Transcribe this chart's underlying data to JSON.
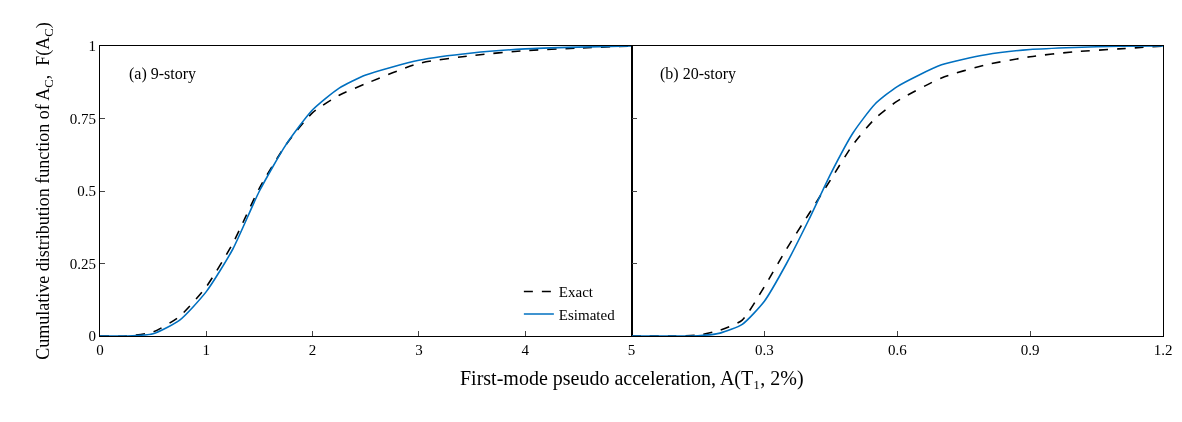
{
  "chart_data": [
    {
      "type": "line",
      "ylabel": "Cumulative distribution function of A$_{C}$,  F(A$_{C}$)",
      "xlabel": "First-mode pseudo acceleration, A(T₁, 2%)",
      "x": [
        0,
        0.25,
        0.5,
        0.75,
        1,
        1.25,
        1.5,
        1.75,
        2,
        2.25,
        2.5,
        3,
        3.5,
        4,
        4.5,
        5
      ],
      "series": [
        {
          "name": "Exact",
          "color": "#000000",
          "line_style": "dashed",
          "values": [
            0,
            0,
            0.014,
            0.068,
            0.17,
            0.32,
            0.51,
            0.66,
            0.77,
            0.83,
            0.87,
            0.94,
            0.967,
            0.984,
            0.993,
            1.0
          ]
        },
        {
          "name": "Esimated",
          "color": "#0070c0",
          "line_style": "solid",
          "values": [
            0,
            0,
            0.008,
            0.055,
            0.153,
            0.3,
            0.5,
            0.66,
            0.78,
            0.855,
            0.9,
            0.951,
            0.976,
            0.99,
            0.996,
            1.0
          ]
        }
      ],
      "xlim": [
        0,
        5
      ],
      "xticks": [
        0,
        1,
        2,
        3,
        4,
        5
      ],
      "ylim": [
        0,
        1
      ],
      "yticks": [
        0,
        0.25,
        0.5,
        0.75,
        1
      ],
      "annotations": [
        "(a) 9-story"
      ],
      "legend": "bottom right"
    },
    {
      "type": "line",
      "x": [
        0,
        0.1,
        0.15,
        0.2,
        0.25,
        0.3,
        0.35,
        0.4,
        0.45,
        0.5,
        0.55,
        0.6,
        0.7,
        0.8,
        0.9,
        1.0,
        1.1,
        1.2
      ],
      "series": [
        {
          "color": "#000000",
          "line_style": "dashed",
          "values": [
            0,
            0,
            0.003,
            0.02,
            0.055,
            0.17,
            0.3,
            0.42,
            0.54,
            0.66,
            0.75,
            0.81,
            0.89,
            0.935,
            0.963,
            0.98,
            0.99,
            1.0
          ]
        },
        {
          "color": "#0070c0",
          "line_style": "solid",
          "values": [
            0,
            0,
            0.001,
            0.01,
            0.04,
            0.12,
            0.25,
            0.4,
            0.56,
            0.7,
            0.8,
            0.86,
            0.935,
            0.97,
            0.988,
            0.995,
            0.999,
            1.0
          ]
        }
      ],
      "xlim": [
        0,
        1.2
      ],
      "xticks": [
        {
          "value": 0,
          "label": null
        },
        0.3,
        0.6,
        0.9,
        1.2
      ],
      "ylim": [
        0,
        1
      ],
      "yticks": [
        0,
        0.25,
        0.5,
        0.75,
        1
      ],
      "annotations": [
        "(b) 20-story"
      ],
      "tick_labels": "x"
    }
  ]
}
